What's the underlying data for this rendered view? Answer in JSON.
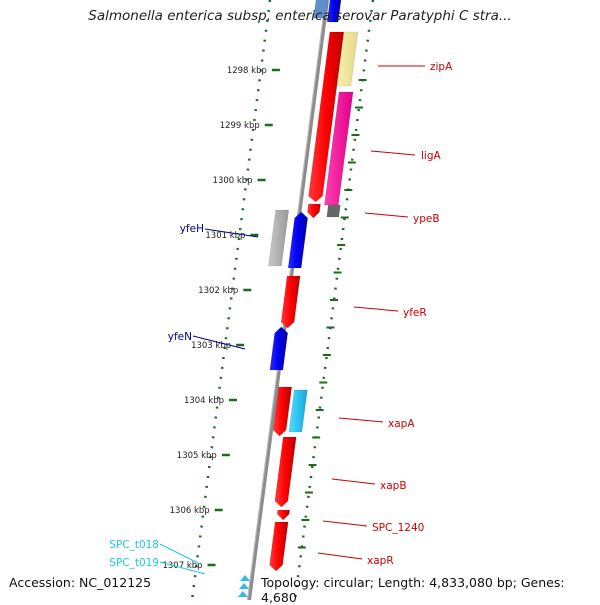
{
  "title": "Salmonella enterica subsp. enterica serovar Paratyphi C stra...",
  "accession": "Accession: NC_012125",
  "topology": "Topology: circular; Length: 4,833,080 bp; Genes: 4,680",
  "colors": {
    "forward": "#ff0000",
    "reverse": "#0000ff",
    "label_red": "#cc0000",
    "label_blue": "#00008b",
    "label_cyan": "#1ec8e6",
    "tick": "#1a6b1a",
    "backbone": "#8c8c8c"
  },
  "scale": {
    "unit": "kbp",
    "ticks": [
      {
        "label": "1298 kbp"
      },
      {
        "label": "1299 kbp"
      },
      {
        "label": "1300 kbp"
      },
      {
        "label": "1301 kbp"
      },
      {
        "label": "1302 kbp"
      },
      {
        "label": "1303 kbp"
      },
      {
        "label": "1304 kbp"
      },
      {
        "label": "1305 kbp"
      },
      {
        "label": "1306 kbp"
      },
      {
        "label": "1307 kbp"
      }
    ]
  },
  "gene_labels": [
    {
      "name": "zipA",
      "strand": "forward"
    },
    {
      "name": "ligA",
      "strand": "forward"
    },
    {
      "name": "ypeB",
      "strand": "forward"
    },
    {
      "name": "yfeR",
      "strand": "forward"
    },
    {
      "name": "xapA",
      "strand": "forward"
    },
    {
      "name": "xapB",
      "strand": "forward"
    },
    {
      "name": "SPC_1240",
      "strand": "forward"
    },
    {
      "name": "xapR",
      "strand": "forward"
    },
    {
      "name": "yfeH",
      "strand": "reverse"
    },
    {
      "name": "yfeN",
      "strand": "reverse"
    },
    {
      "name": "SPC_t018",
      "strand": "trna"
    },
    {
      "name": "SPC_t019",
      "strand": "trna"
    }
  ]
}
